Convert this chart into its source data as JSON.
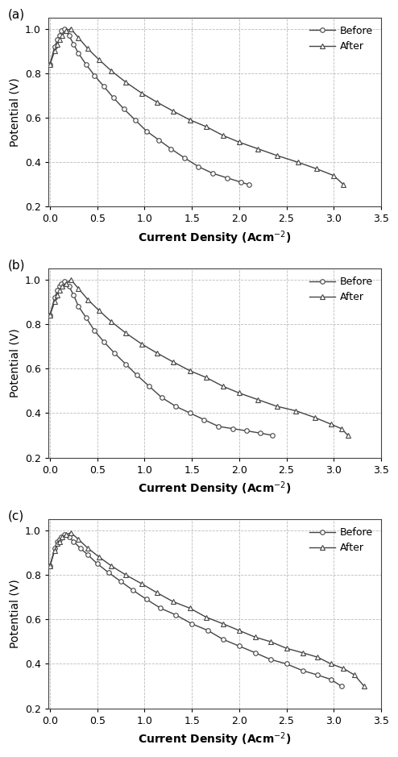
{
  "panels": [
    {
      "label": "(a)",
      "before_x": [
        0.0,
        0.05,
        0.08,
        0.1,
        0.12,
        0.15,
        0.2,
        0.25,
        0.3,
        0.38,
        0.47,
        0.57,
        0.67,
        0.78,
        0.9,
        1.02,
        1.15,
        1.28,
        1.42,
        1.57,
        1.72,
        1.87,
        2.02,
        2.1
      ],
      "before_y": [
        0.84,
        0.92,
        0.95,
        0.97,
        0.99,
        1.0,
        0.97,
        0.93,
        0.89,
        0.84,
        0.79,
        0.74,
        0.69,
        0.64,
        0.59,
        0.54,
        0.5,
        0.46,
        0.42,
        0.38,
        0.35,
        0.33,
        0.31,
        0.3
      ],
      "after_x": [
        0.0,
        0.05,
        0.08,
        0.1,
        0.13,
        0.17,
        0.22,
        0.3,
        0.4,
        0.52,
        0.65,
        0.8,
        0.97,
        1.13,
        1.3,
        1.48,
        1.65,
        1.83,
        2.0,
        2.2,
        2.4,
        2.62,
        2.82,
        3.0,
        3.1
      ],
      "after_y": [
        0.84,
        0.9,
        0.93,
        0.95,
        0.97,
        0.99,
        1.0,
        0.96,
        0.91,
        0.86,
        0.81,
        0.76,
        0.71,
        0.67,
        0.63,
        0.59,
        0.56,
        0.52,
        0.49,
        0.46,
        0.43,
        0.4,
        0.37,
        0.34,
        0.3
      ]
    },
    {
      "label": "(b)",
      "before_x": [
        0.0,
        0.05,
        0.08,
        0.1,
        0.12,
        0.15,
        0.2,
        0.25,
        0.3,
        0.38,
        0.47,
        0.57,
        0.68,
        0.8,
        0.92,
        1.05,
        1.18,
        1.33,
        1.48,
        1.63,
        1.78,
        1.93,
        2.08,
        2.22,
        2.35
      ],
      "before_y": [
        0.84,
        0.92,
        0.95,
        0.97,
        0.98,
        0.99,
        0.97,
        0.93,
        0.88,
        0.83,
        0.77,
        0.72,
        0.67,
        0.62,
        0.57,
        0.52,
        0.47,
        0.43,
        0.4,
        0.37,
        0.34,
        0.33,
        0.32,
        0.31,
        0.3
      ],
      "after_x": [
        0.0,
        0.05,
        0.08,
        0.1,
        0.13,
        0.17,
        0.22,
        0.3,
        0.4,
        0.52,
        0.65,
        0.8,
        0.97,
        1.13,
        1.3,
        1.48,
        1.65,
        1.83,
        2.0,
        2.2,
        2.4,
        2.6,
        2.8,
        2.97,
        3.08,
        3.15
      ],
      "after_y": [
        0.84,
        0.9,
        0.93,
        0.95,
        0.97,
        0.98,
        1.0,
        0.96,
        0.91,
        0.86,
        0.81,
        0.76,
        0.71,
        0.67,
        0.63,
        0.59,
        0.56,
        0.52,
        0.49,
        0.46,
        0.43,
        0.41,
        0.38,
        0.35,
        0.33,
        0.3
      ]
    },
    {
      "label": "(c)",
      "before_x": [
        0.0,
        0.05,
        0.08,
        0.1,
        0.12,
        0.15,
        0.2,
        0.25,
        0.32,
        0.4,
        0.5,
        0.62,
        0.75,
        0.88,
        1.02,
        1.17,
        1.33,
        1.5,
        1.67,
        1.83,
        2.0,
        2.17,
        2.33,
        2.5,
        2.67,
        2.83,
        2.97,
        3.08
      ],
      "before_y": [
        0.84,
        0.92,
        0.95,
        0.96,
        0.97,
        0.98,
        0.97,
        0.95,
        0.92,
        0.89,
        0.85,
        0.81,
        0.77,
        0.73,
        0.69,
        0.65,
        0.62,
        0.58,
        0.55,
        0.51,
        0.48,
        0.45,
        0.42,
        0.4,
        0.37,
        0.35,
        0.33,
        0.3
      ],
      "after_x": [
        0.0,
        0.05,
        0.08,
        0.1,
        0.13,
        0.17,
        0.22,
        0.3,
        0.4,
        0.52,
        0.65,
        0.8,
        0.97,
        1.13,
        1.3,
        1.48,
        1.65,
        1.83,
        2.0,
        2.17,
        2.33,
        2.5,
        2.67,
        2.83,
        2.97,
        3.1,
        3.22,
        3.32
      ],
      "after_y": [
        0.84,
        0.91,
        0.94,
        0.95,
        0.97,
        0.98,
        0.99,
        0.96,
        0.92,
        0.88,
        0.84,
        0.8,
        0.76,
        0.72,
        0.68,
        0.65,
        0.61,
        0.58,
        0.55,
        0.52,
        0.5,
        0.47,
        0.45,
        0.43,
        0.4,
        0.38,
        0.35,
        0.3
      ]
    }
  ],
  "ylabel": "Potential (V)",
  "xlim": [
    -0.02,
    3.5
  ],
  "ylim": [
    0.2,
    1.05
  ],
  "yticks": [
    0.2,
    0.4,
    0.6,
    0.8,
    1.0
  ],
  "xticks": [
    0.0,
    0.5,
    1.0,
    1.5,
    2.0,
    2.5,
    3.0,
    3.5
  ],
  "xticklabels": [
    "0.0",
    "0.5",
    "1.0",
    "1.5",
    "2.0",
    "2.5",
    "3.0",
    "3.5"
  ],
  "line_color": "#444444",
  "marker_before": "o",
  "marker_after": "^",
  "markersize": 4,
  "linewidth": 1.0,
  "legend_labels": [
    "Before",
    "After"
  ],
  "grid_color": "#bbbbbb",
  "grid_linestyle": "--",
  "background_color": "#ffffff",
  "label_fontsize": 10,
  "tick_fontsize": 9,
  "legend_fontsize": 9
}
